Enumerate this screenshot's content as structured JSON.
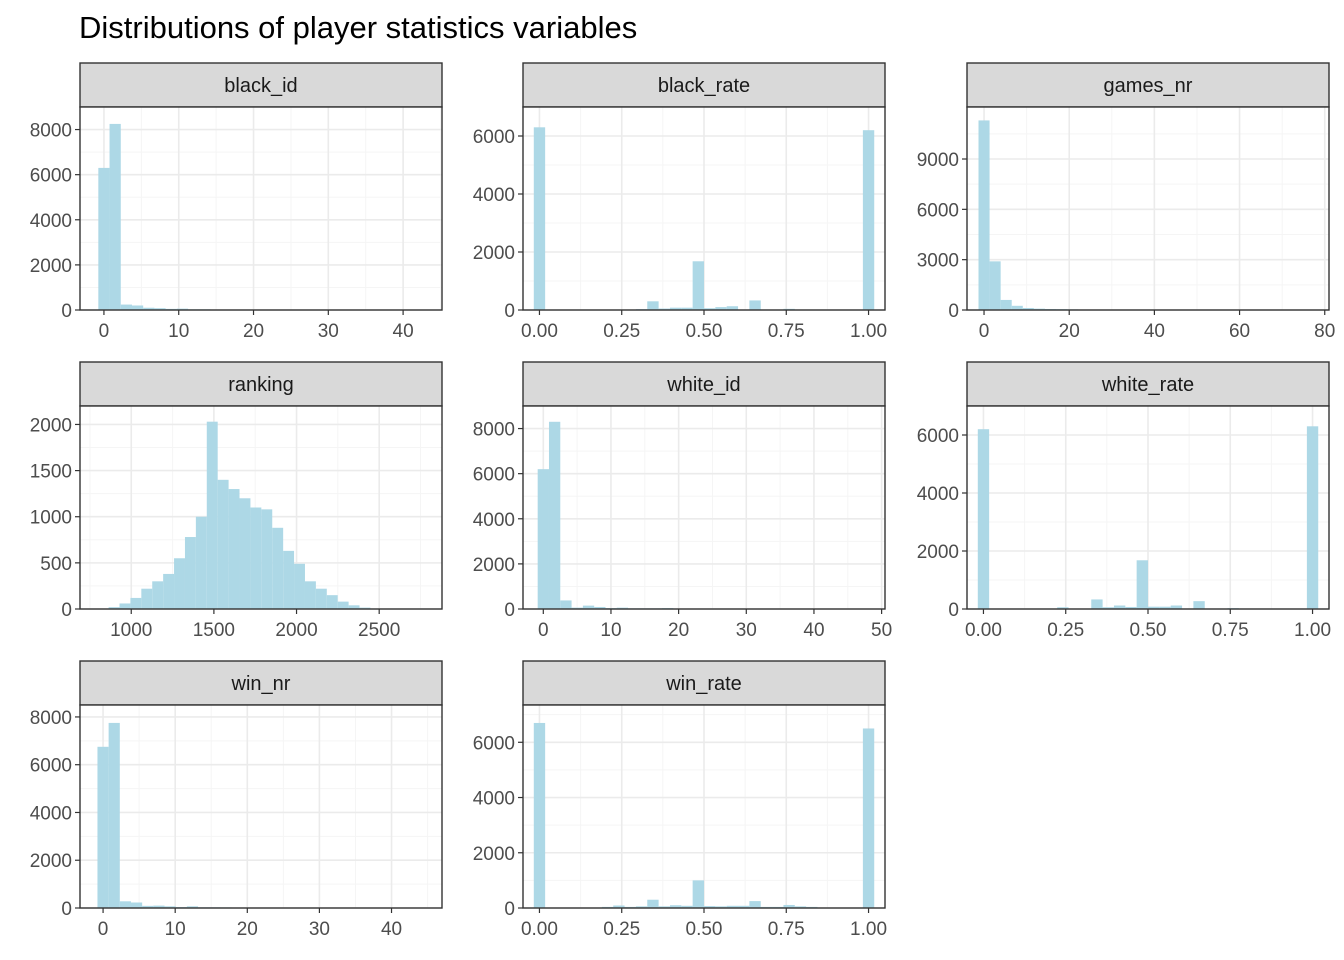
{
  "title": "Distributions of player statistics variables",
  "colors": {
    "bar": "#ADD8E6",
    "strip_fill": "#D9D9D9",
    "panel_border": "#333333",
    "grid_major": "#EBEBEB",
    "grid_minor": "#F5F5F5",
    "tick_text": "#4D4D4D"
  },
  "chart_data": [
    {
      "type": "bar",
      "facet": "black_id",
      "xlim": [
        -3.2,
        45.2
      ],
      "ylim": [
        0,
        9000
      ],
      "x_ticks": [
        0,
        10,
        20,
        30,
        40
      ],
      "x_tick_labels": [
        "0",
        "10",
        "20",
        "30",
        "40"
      ],
      "y_ticks": [
        0,
        2000,
        4000,
        6000,
        8000
      ],
      "y_tick_labels": [
        "0",
        "2000",
        "4000",
        "6000",
        "8000"
      ],
      "bin_width": 1.5,
      "bin_starts": [
        -0.75,
        0.75,
        2.25,
        3.75,
        5.25,
        6.75,
        8.25,
        9.75,
        11.25,
        12.75,
        14.25,
        15.75,
        17.25,
        18.75,
        20.25,
        21.75
      ],
      "counts": [
        6300,
        8250,
        240,
        200,
        100,
        80,
        50,
        60,
        30,
        30,
        20,
        20,
        20,
        20,
        15,
        10
      ]
    },
    {
      "type": "bar",
      "facet": "black_rate",
      "xlim": [
        -0.05,
        1.05
      ],
      "ylim": [
        0,
        7000
      ],
      "x_ticks": [
        0,
        0.25,
        0.5,
        0.75,
        1.0
      ],
      "x_tick_labels": [
        "0.00",
        "0.25",
        "0.50",
        "0.75",
        "1.00"
      ],
      "y_ticks": [
        0,
        2000,
        4000,
        6000
      ],
      "y_tick_labels": [
        "0",
        "2000",
        "4000",
        "6000"
      ],
      "bin_width": 0.0345,
      "bin_starts": [
        -0.0172,
        0.2931,
        0.3276,
        0.3621,
        0.3966,
        0.431,
        0.4655,
        0.5,
        0.5345,
        0.569,
        0.6379,
        0.7414,
        0.9828
      ],
      "counts": [
        6300,
        30,
        300,
        50,
        80,
        80,
        1680,
        60,
        100,
        130,
        330,
        40,
        6200
      ]
    },
    {
      "type": "bar",
      "facet": "games_nr",
      "xlim": [
        -4,
        81
      ],
      "ylim": [
        0,
        12100
      ],
      "x_ticks": [
        0,
        20,
        40,
        60,
        80
      ],
      "x_tick_labels": [
        "0",
        "20",
        "40",
        "60",
        "80"
      ],
      "y_ticks": [
        0,
        3000,
        6000,
        9000
      ],
      "y_tick_labels": [
        "0",
        "3000",
        "6000",
        "9000"
      ],
      "bin_width": 2.6,
      "bin_starts": [
        -1.3,
        1.3,
        3.9,
        6.5,
        9.1,
        11.7,
        14.3,
        16.9,
        19.5,
        22.1,
        24.7,
        27.3,
        29.9,
        32.5,
        35.1,
        37.7,
        40.3,
        42.9
      ],
      "counts": [
        11300,
        2900,
        600,
        250,
        120,
        80,
        60,
        50,
        40,
        30,
        25,
        20,
        20,
        20,
        15,
        15,
        15,
        10
      ]
    },
    {
      "type": "bar",
      "facet": "ranking",
      "xlim": [
        690,
        2880
      ],
      "ylim": [
        0,
        2200
      ],
      "x_ticks": [
        1000,
        1500,
        2000,
        2500
      ],
      "x_tick_labels": [
        "1000",
        "1500",
        "2000",
        "2500"
      ],
      "y_ticks": [
        0,
        500,
        1000,
        1500,
        2000
      ],
      "y_tick_labels": [
        "0",
        "500",
        "1000",
        "1500",
        "2000"
      ],
      "bin_width": 66,
      "bin_starts": [
        797,
        863,
        929,
        995,
        1061,
        1127,
        1193,
        1259,
        1325,
        1391,
        1457,
        1523,
        1589,
        1655,
        1721,
        1787,
        1853,
        1919,
        1985,
        2051,
        2117,
        2183,
        2249,
        2315,
        2381,
        2447,
        2513
      ],
      "counts": [
        5,
        20,
        60,
        120,
        220,
        300,
        380,
        550,
        780,
        1000,
        2030,
        1400,
        1300,
        1200,
        1100,
        1080,
        880,
        630,
        490,
        300,
        220,
        150,
        80,
        40,
        15,
        5,
        2
      ]
    },
    {
      "type": "bar",
      "facet": "white_id",
      "xlim": [
        -3,
        50.5
      ],
      "ylim": [
        0,
        9000
      ],
      "x_ticks": [
        0,
        10,
        20,
        30,
        40,
        50
      ],
      "x_tick_labels": [
        "0",
        "10",
        "20",
        "30",
        "40",
        "50"
      ],
      "y_ticks": [
        0,
        2000,
        4000,
        6000,
        8000
      ],
      "y_tick_labels": [
        "0",
        "2000",
        "4000",
        "6000",
        "8000"
      ],
      "bin_width": 1.67,
      "bin_starts": [
        -0.83,
        0.84,
        2.51,
        4.18,
        5.85,
        7.52,
        9.19,
        10.86,
        12.53,
        14.2,
        15.87,
        17.54,
        19.21,
        20.88,
        22.55
      ],
      "counts": [
        6200,
        8300,
        380,
        60,
        150,
        90,
        40,
        60,
        30,
        30,
        30,
        40,
        20,
        20,
        15
      ]
    },
    {
      "type": "bar",
      "facet": "white_rate",
      "xlim": [
        -0.05,
        1.05
      ],
      "ylim": [
        0,
        7000
      ],
      "x_ticks": [
        0,
        0.25,
        0.5,
        0.75,
        1.0
      ],
      "x_tick_labels": [
        "0.00",
        "0.25",
        "0.50",
        "0.75",
        "1.00"
      ],
      "y_ticks": [
        0,
        2000,
        4000,
        6000
      ],
      "y_tick_labels": [
        "0",
        "2000",
        "4000",
        "6000"
      ],
      "bin_width": 0.0345,
      "bin_starts": [
        -0.0172,
        0.2241,
        0.3276,
        0.3621,
        0.3966,
        0.431,
        0.4655,
        0.5,
        0.5345,
        0.569,
        0.6379,
        0.7414,
        0.9828
      ],
      "counts": [
        6200,
        60,
        330,
        60,
        120,
        70,
        1680,
        80,
        80,
        120,
        270,
        30,
        6300
      ]
    },
    {
      "type": "bar",
      "facet": "win_nr",
      "xlim": [
        -3.2,
        47
      ],
      "ylim": [
        0,
        8500
      ],
      "x_ticks": [
        0,
        10,
        20,
        30,
        40
      ],
      "x_tick_labels": [
        "0",
        "10",
        "20",
        "30",
        "40"
      ],
      "y_ticks": [
        0,
        2000,
        4000,
        6000,
        8000
      ],
      "y_tick_labels": [
        "0",
        "2000",
        "4000",
        "6000",
        "8000"
      ],
      "bin_width": 1.55,
      "bin_starts": [
        -0.78,
        0.77,
        2.32,
        3.87,
        5.42,
        6.97,
        8.52,
        10.07,
        11.62,
        13.17,
        14.72,
        16.27,
        17.82,
        19.37,
        20.92,
        22.47,
        24.02,
        25.57,
        27.12,
        28.67,
        30.22,
        31.77,
        33.32
      ],
      "counts": [
        6750,
        7750,
        280,
        230,
        90,
        100,
        70,
        40,
        70,
        30,
        30,
        25,
        20,
        20,
        20,
        15,
        15,
        15,
        10,
        10,
        10,
        10,
        10
      ]
    },
    {
      "type": "bar",
      "facet": "win_rate",
      "xlim": [
        -0.05,
        1.05
      ],
      "ylim": [
        0,
        7350
      ],
      "x_ticks": [
        0,
        0.25,
        0.5,
        0.75,
        1.0
      ],
      "x_tick_labels": [
        "0.00",
        "0.25",
        "0.50",
        "0.75",
        "1.00"
      ],
      "y_ticks": [
        0,
        2000,
        4000,
        6000
      ],
      "y_tick_labels": [
        "0",
        "2000",
        "4000",
        "6000"
      ],
      "bin_width": 0.0345,
      "bin_starts": [
        -0.0172,
        0.1897,
        0.2241,
        0.2586,
        0.2931,
        0.3276,
        0.3621,
        0.3966,
        0.431,
        0.4655,
        0.5,
        0.5345,
        0.569,
        0.6034,
        0.6379,
        0.6724,
        0.7069,
        0.7414,
        0.7759,
        0.8103,
        0.9828
      ],
      "counts": [
        6700,
        40,
        90,
        40,
        60,
        300,
        60,
        100,
        80,
        1000,
        70,
        60,
        80,
        80,
        250,
        40,
        40,
        110,
        60,
        40,
        6500
      ]
    }
  ]
}
